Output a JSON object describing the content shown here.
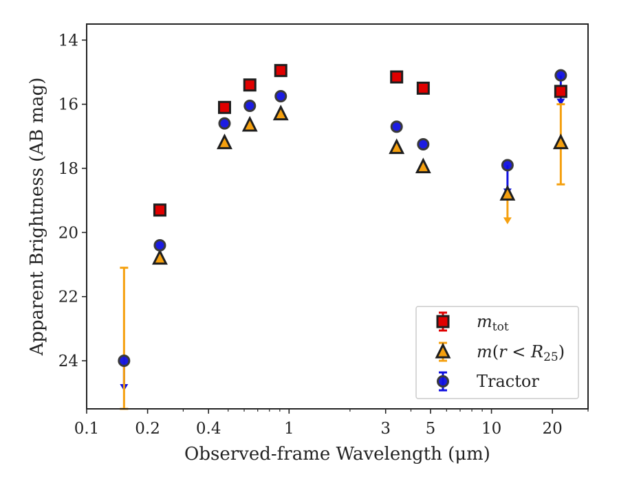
{
  "chart_data": {
    "type": "scatter",
    "xlabel": "Observed-frame Wavelength (μm)",
    "ylabel": "Apparent Brightness (AB mag)",
    "xscale": "log",
    "yinverted": true,
    "xlim": [
      0.1,
      30
    ],
    "ylim": [
      25.5,
      13.5
    ],
    "xticks": [
      {
        "value": 0.1,
        "label": "0.1"
      },
      {
        "value": 0.2,
        "label": "0.2"
      },
      {
        "value": 0.4,
        "label": "0.4"
      },
      {
        "value": 1,
        "label": "1"
      },
      {
        "value": 3,
        "label": "3"
      },
      {
        "value": 5,
        "label": "5"
      },
      {
        "value": 10,
        "label": "10"
      },
      {
        "value": 20,
        "label": "20"
      }
    ],
    "yticks": [
      {
        "value": 14,
        "label": "14"
      },
      {
        "value": 16,
        "label": "16"
      },
      {
        "value": 18,
        "label": "18"
      },
      {
        "value": 20,
        "label": "20"
      },
      {
        "value": 22,
        "label": "22"
      },
      {
        "value": 24,
        "label": "24"
      }
    ],
    "legend_position": "lower-right",
    "series": [
      {
        "name": "m_tot",
        "marker": "square",
        "color": "#e00000",
        "points": [
          {
            "x": 0.23,
            "y": 19.3
          },
          {
            "x": 0.48,
            "y": 16.1
          },
          {
            "x": 0.64,
            "y": 15.4
          },
          {
            "x": 0.91,
            "y": 14.95
          },
          {
            "x": 3.4,
            "y": 15.15
          },
          {
            "x": 4.6,
            "y": 15.5
          },
          {
            "x": 22,
            "y": 15.6
          }
        ]
      },
      {
        "name": "m(r < R25)",
        "marker": "triangle",
        "color": "#f5a00f",
        "points": [
          {
            "x": 0.23,
            "y": 20.8
          },
          {
            "x": 0.48,
            "y": 17.2
          },
          {
            "x": 0.64,
            "y": 16.65
          },
          {
            "x": 0.91,
            "y": 16.3
          },
          {
            "x": 3.4,
            "y": 17.35
          },
          {
            "x": 4.6,
            "y": 17.95
          },
          {
            "x": 12,
            "y": 18.8,
            "upper_limit_to": 19.7
          },
          {
            "x": 22,
            "y": 17.2,
            "err_low": 16.0,
            "err_high": 18.5
          }
        ],
        "extra_errorbars": [
          {
            "x": 0.153,
            "from": 21.1,
            "to": 25.5
          }
        ]
      },
      {
        "name": "Tractor",
        "marker": "circle",
        "color": "#1010e0",
        "points": [
          {
            "x": 0.153,
            "y": 24.0,
            "upper_limit_to": 24.9
          },
          {
            "x": 0.23,
            "y": 20.4
          },
          {
            "x": 0.48,
            "y": 16.6
          },
          {
            "x": 0.64,
            "y": 16.05
          },
          {
            "x": 0.91,
            "y": 15.75
          },
          {
            "x": 3.4,
            "y": 16.7
          },
          {
            "x": 4.6,
            "y": 17.25
          },
          {
            "x": 12,
            "y": 17.9,
            "upper_limit_to": 18.8
          },
          {
            "x": 22,
            "y": 15.1,
            "upper_limit_to": 16.0
          }
        ]
      }
    ]
  }
}
